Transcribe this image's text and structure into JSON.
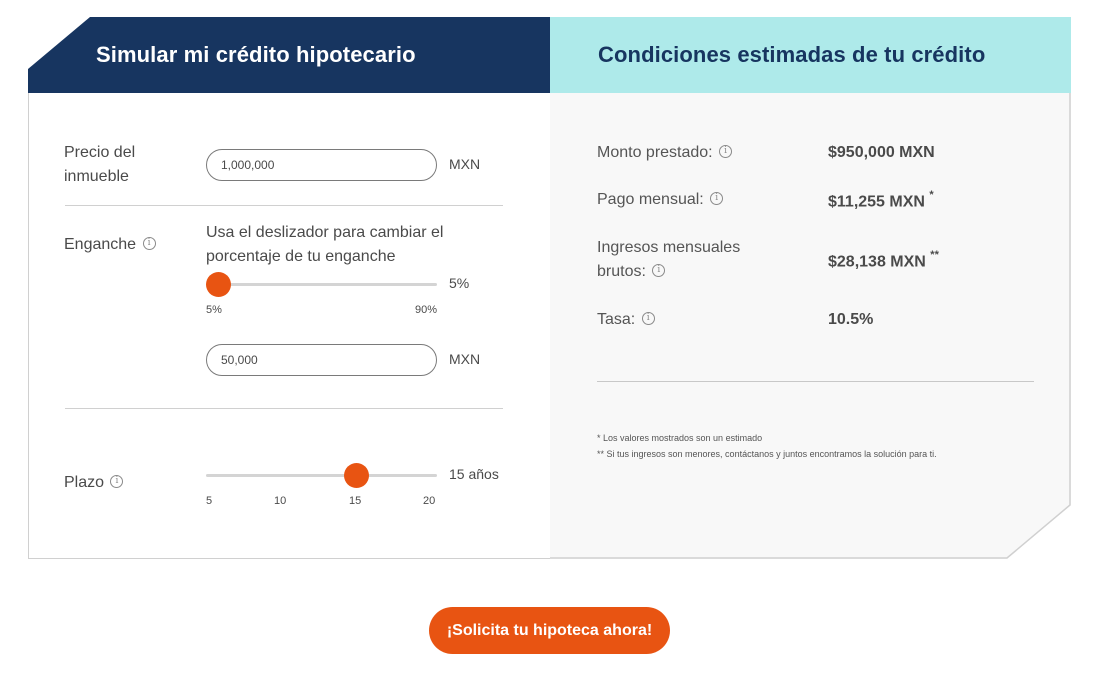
{
  "left": {
    "title": "Simular mi crédito hipotecario",
    "price": {
      "label_line1": "Precio del",
      "label_line2": "inmueble",
      "value": "1,000,000",
      "unit": "MXN"
    },
    "down_payment": {
      "label": "Enganche",
      "hint_line1": "Usa el deslizador para cambiar el",
      "hint_line2": "porcentaje de tu enganche",
      "percent": "5%",
      "slider_min": "5%",
      "slider_max": "90%",
      "slider_fraction": 0,
      "amount": "50,000",
      "unit": "MXN"
    },
    "term": {
      "label": "Plazo",
      "value": "15 años",
      "ticks": [
        "5",
        "10",
        "15",
        "20"
      ],
      "slider_fraction": 0.667
    }
  },
  "right": {
    "title": "Condiciones estimadas de tu crédito",
    "rows": [
      {
        "label": "Monto prestado:",
        "value": "$950,000 MXN",
        "mark": ""
      },
      {
        "label": "Pago mensual:",
        "value": "$11,255 MXN",
        "mark": "*"
      },
      {
        "label_line1": "Ingresos mensuales",
        "label_line2": "brutos:",
        "value": "$28,138 MXN",
        "mark": "**"
      },
      {
        "label": "Tasa:",
        "value": "10.5%",
        "mark": ""
      }
    ],
    "note1": "* Los valores mostrados son un estimado",
    "note2": "** Si tus ingresos son menores, contáctanos y juntos encontramos la solución para ti."
  },
  "cta": {
    "label": "¡Solicita tu hipoteca ahora!"
  },
  "icons": {
    "info": "info-icon"
  },
  "colors": {
    "navy": "#173560",
    "teal": "#aeeaea",
    "accent": "#e85412"
  }
}
